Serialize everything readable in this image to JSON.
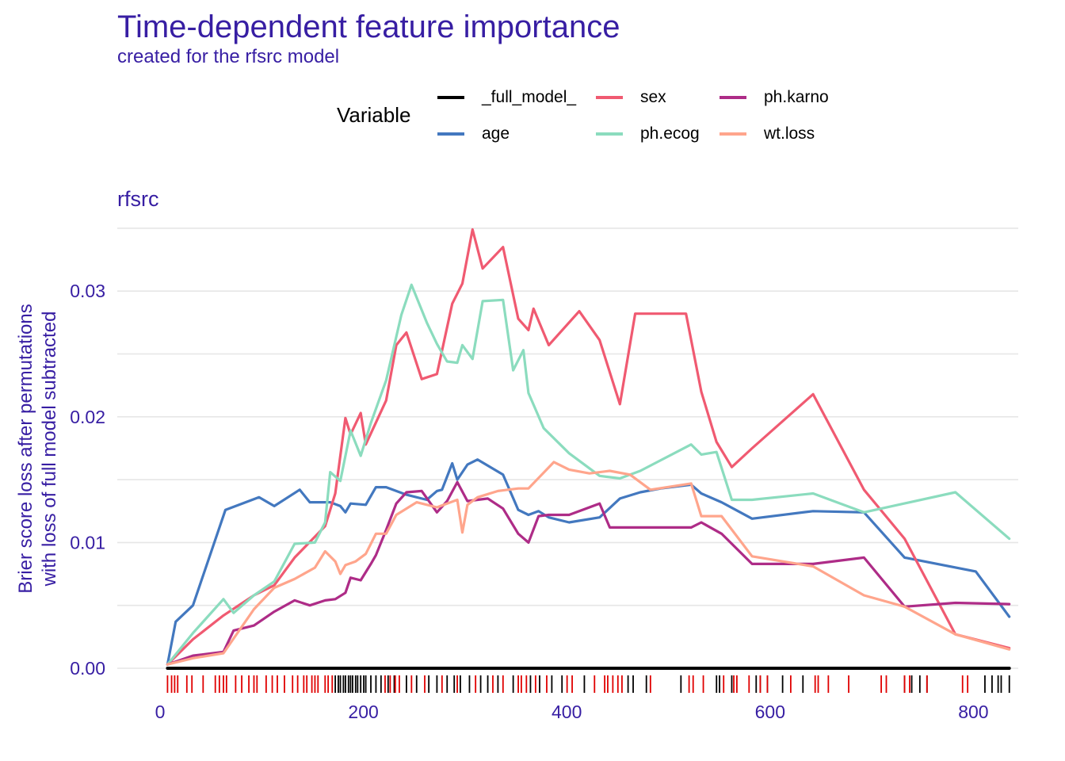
{
  "chart_data": {
    "type": "line",
    "title": "Time-dependent feature importance",
    "subtitle": "created for the rfsrc model",
    "panel": "rfsrc",
    "ylabel": [
      "Brier score loss after permutations",
      "with loss of full model subtracted"
    ],
    "xlabel": "",
    "xlim": [
      0,
      840
    ],
    "ylim": [
      0,
      0.035
    ],
    "x_ticks": [
      0,
      200,
      400,
      600,
      800
    ],
    "y_ticks": [
      0.0,
      0.01,
      0.02,
      0.03
    ],
    "y_tick_labels": [
      "0.00",
      "0.01",
      "0.02",
      "0.03"
    ],
    "grid": true,
    "legend": {
      "title": "Variable",
      "position": "top",
      "entries": [
        "_full_model_",
        "sex",
        "ph.karno",
        "age",
        "ph.ecog",
        "wt.loss"
      ]
    },
    "series": [
      {
        "name": "_full_model_",
        "color": "#000000",
        "x": [
          5,
          833
        ],
        "y": [
          0,
          0
        ]
      },
      {
        "name": "age",
        "color": "#4378bf",
        "x": [
          5,
          13,
          30,
          62,
          95,
          110,
          135,
          145,
          165,
          175,
          180,
          185,
          200,
          210,
          220,
          240,
          260,
          270,
          275,
          285,
          290,
          300,
          310,
          335,
          350,
          360,
          370,
          380,
          400,
          430,
          450,
          470,
          490,
          520,
          530,
          550,
          580,
          640,
          690,
          730,
          800,
          833
        ],
        "y": [
          0.0003,
          0.0037,
          0.005,
          0.0126,
          0.0136,
          0.0129,
          0.0142,
          0.0132,
          0.0132,
          0.0129,
          0.0124,
          0.0131,
          0.013,
          0.0144,
          0.0144,
          0.0138,
          0.0134,
          0.0141,
          0.0142,
          0.0163,
          0.015,
          0.0162,
          0.0166,
          0.0154,
          0.0126,
          0.0122,
          0.0125,
          0.012,
          0.0116,
          0.012,
          0.0135,
          0.014,
          0.0143,
          0.0146,
          0.0139,
          0.0132,
          0.0119,
          0.0125,
          0.0124,
          0.0088,
          0.0077,
          0.0041
        ]
      },
      {
        "name": "sex",
        "color": "#f05a71",
        "x": [
          5,
          30,
          60,
          90,
          110,
          130,
          160,
          170,
          180,
          185,
          195,
          200,
          220,
          230,
          240,
          255,
          270,
          285,
          295,
          305,
          315,
          335,
          350,
          360,
          365,
          380,
          410,
          430,
          450,
          465,
          500,
          515,
          530,
          545,
          560,
          580,
          640,
          690,
          730,
          780,
          833
        ],
        "y": [
          0.0003,
          0.0023,
          0.0042,
          0.0058,
          0.0066,
          0.0088,
          0.0113,
          0.0139,
          0.0199,
          0.0186,
          0.0203,
          0.0178,
          0.0213,
          0.0257,
          0.0267,
          0.023,
          0.0234,
          0.029,
          0.0306,
          0.0349,
          0.0318,
          0.0335,
          0.0278,
          0.0269,
          0.0286,
          0.0257,
          0.0284,
          0.0261,
          0.021,
          0.0282,
          0.0282,
          0.0282,
          0.022,
          0.018,
          0.016,
          0.0175,
          0.0218,
          0.0142,
          0.0103,
          0.0027,
          0.0016
        ]
      },
      {
        "name": "ph.ecog",
        "color": "#8bdcbe",
        "x": [
          5,
          30,
          60,
          70,
          90,
          110,
          130,
          150,
          160,
          165,
          175,
          185,
          195,
          205,
          220,
          235,
          245,
          260,
          270,
          280,
          290,
          295,
          305,
          315,
          335,
          345,
          355,
          360,
          375,
          400,
          430,
          450,
          470,
          520,
          530,
          545,
          560,
          580,
          640,
          690,
          780,
          833
        ],
        "y": [
          0.0003,
          0.0028,
          0.0055,
          0.0044,
          0.0058,
          0.0069,
          0.0099,
          0.01,
          0.0116,
          0.0156,
          0.0149,
          0.0189,
          0.0169,
          0.0195,
          0.0229,
          0.0281,
          0.0305,
          0.0275,
          0.0258,
          0.0244,
          0.0243,
          0.0257,
          0.0246,
          0.0292,
          0.0293,
          0.0237,
          0.0253,
          0.0219,
          0.0191,
          0.0171,
          0.0153,
          0.0151,
          0.0157,
          0.0178,
          0.017,
          0.0172,
          0.0134,
          0.0134,
          0.0139,
          0.0124,
          0.014,
          0.0103
        ]
      },
      {
        "name": "ph.karno",
        "color": "#ae2c87",
        "x": [
          5,
          30,
          60,
          70,
          90,
          110,
          130,
          145,
          160,
          170,
          180,
          185,
          195,
          205,
          210,
          220,
          230,
          240,
          255,
          270,
          280,
          290,
          300,
          320,
          335,
          350,
          360,
          370,
          380,
          400,
          430,
          440,
          470,
          500,
          520,
          530,
          550,
          580,
          640,
          690,
          730,
          780,
          833
        ],
        "y": [
          0.0003,
          0.001,
          0.0013,
          0.003,
          0.0034,
          0.0045,
          0.0054,
          0.005,
          0.0054,
          0.0055,
          0.006,
          0.0072,
          0.007,
          0.0083,
          0.009,
          0.011,
          0.0131,
          0.014,
          0.0141,
          0.0124,
          0.0133,
          0.0148,
          0.0133,
          0.0135,
          0.0127,
          0.0107,
          0.01,
          0.0121,
          0.0122,
          0.0122,
          0.0131,
          0.0112,
          0.0112,
          0.0112,
          0.0112,
          0.0116,
          0.0107,
          0.0083,
          0.0083,
          0.0088,
          0.0049,
          0.0052,
          0.0051
        ]
      },
      {
        "name": "wt.loss",
        "color": "#ffa58c",
        "x": [
          5,
          30,
          60,
          90,
          110,
          130,
          150,
          160,
          170,
          175,
          180,
          190,
          200,
          210,
          220,
          230,
          250,
          270,
          280,
          290,
          295,
          300,
          310,
          330,
          350,
          360,
          385,
          400,
          420,
          440,
          460,
          480,
          520,
          530,
          550,
          580,
          640,
          690,
          730,
          780,
          833
        ],
        "y": [
          0.0003,
          0.0008,
          0.0012,
          0.0047,
          0.0064,
          0.0071,
          0.008,
          0.0093,
          0.0085,
          0.0075,
          0.0082,
          0.0085,
          0.0091,
          0.0107,
          0.0107,
          0.0122,
          0.0132,
          0.0128,
          0.0131,
          0.0134,
          0.0108,
          0.013,
          0.0136,
          0.0141,
          0.0143,
          0.0143,
          0.0164,
          0.0158,
          0.0155,
          0.0157,
          0.0154,
          0.0142,
          0.0147,
          0.0121,
          0.0121,
          0.0089,
          0.0081,
          0.0058,
          0.0049,
          0.0027,
          0.0015
        ]
      }
    ],
    "rug": {
      "black": [
        170,
        173,
        175,
        178,
        180,
        183,
        185,
        187,
        190,
        192,
        195,
        198,
        200,
        205,
        210,
        215,
        222,
        228,
        240,
        250,
        262,
        270,
        280,
        287,
        293,
        302,
        313,
        320,
        330,
        345,
        362,
        371,
        383,
        393,
        415,
        458,
        463,
        476,
        510,
        545,
        548,
        560,
        584,
        588,
        595,
        610,
        630,
        730,
        737,
        745,
        752,
        809,
        816,
        822,
        825,
        833
      ],
      "red": [
        5,
        9,
        12,
        15,
        24,
        29,
        40,
        52,
        56,
        60,
        63,
        72,
        78,
        85,
        90,
        93,
        102,
        108,
        113,
        120,
        128,
        133,
        139,
        142,
        147,
        150,
        153,
        160,
        163,
        167,
        219,
        224,
        229,
        233,
        245,
        258,
        275,
        290,
        308,
        325,
        335,
        350,
        353,
        358,
        367,
        378,
        398,
        403,
        425,
        435,
        438,
        443,
        448,
        452,
        480,
        518,
        522,
        532,
        552,
        562,
        565,
        577,
        588,
        595,
        618,
        642,
        645,
        655,
        675,
        707,
        712,
        730,
        735,
        752,
        787,
        792
      ]
    }
  }
}
